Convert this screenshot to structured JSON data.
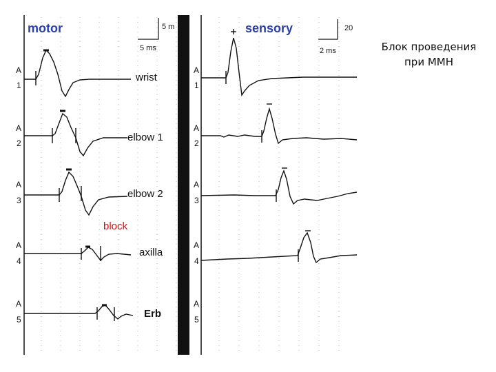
{
  "panels": {
    "motor": {
      "title": "motor",
      "scale_amplitude": "5 m",
      "scale_time": "5 ms"
    },
    "sensory": {
      "title": "sensory",
      "scale_amplitude": "20",
      "scale_time": "2 ms"
    }
  },
  "motor_traces": [
    {
      "channel": "A",
      "number": "1",
      "site": "wrist"
    },
    {
      "channel": "A",
      "number": "2",
      "site": "elbow 1"
    },
    {
      "channel": "A",
      "number": "3",
      "site": "elbow 2"
    },
    {
      "channel": "A",
      "number": "4",
      "site": "axilla"
    },
    {
      "channel": "A",
      "number": "5",
      "site": "Erb"
    }
  ],
  "sensory_traces": [
    {
      "channel": "A",
      "number": "1"
    },
    {
      "channel": "A",
      "number": "2"
    },
    {
      "channel": "A",
      "number": "3"
    },
    {
      "channel": "A",
      "number": "4"
    },
    {
      "channel": "A",
      "number": "5"
    }
  ],
  "block_label": "block",
  "caption": {
    "line1": "Блок проведения",
    "line2": "при ММН"
  },
  "colors": {
    "title": "#2a3fb0",
    "block": "#d01010",
    "trace": "#111111",
    "grid": "#b8b8b8",
    "divider": "#111111"
  }
}
